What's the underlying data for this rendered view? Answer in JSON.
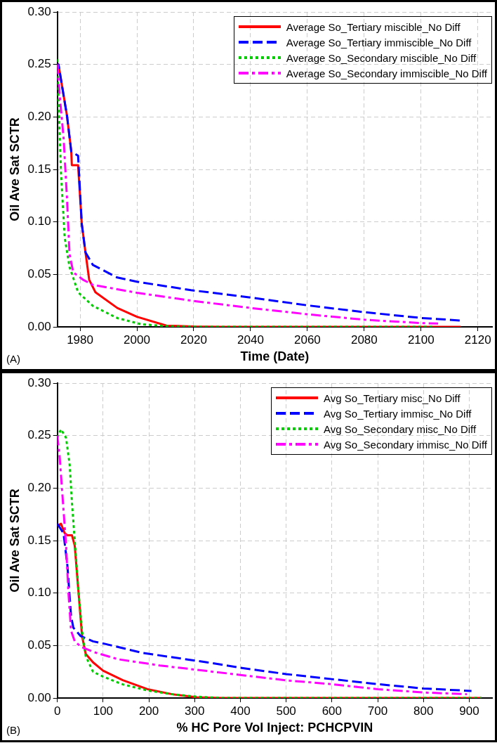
{
  "chart_data": [
    {
      "type": "line",
      "xlabel": "Time (Date)",
      "ylabel": "Oil Ave Sat SCTR",
      "annotations": [
        "(A)"
      ],
      "xlim": [
        1972,
        2125
      ],
      "ylim": [
        0,
        0.3
      ],
      "xticks": [
        1980,
        2000,
        2020,
        2040,
        2060,
        2080,
        2100,
        2120
      ],
      "yticks": [
        {
          "value": 0,
          "label": "0.00"
        },
        {
          "value": 0.05,
          "label": "0.05"
        },
        {
          "value": 0.1,
          "label": "0.10"
        },
        {
          "value": 0.15,
          "label": "0.15"
        },
        {
          "value": 0.2,
          "label": "0.20"
        },
        {
          "value": 0.25,
          "label": "0.25"
        },
        {
          "value": 0.3,
          "label": "0.30"
        }
      ],
      "grid": true,
      "legend": "top right",
      "marker": "none",
      "series": [
        {
          "name": "Average So_Tertiary miscible_No Diff",
          "color": "#ff0000",
          "line_style": "solid",
          "x": [
            1972,
            1972.4,
            1975.4,
            1976.9,
            1977.1,
            1979.3,
            1980.6,
            1981.9,
            1983.2,
            1985.4,
            1993.1,
            2000,
            2010.4,
            2020,
            2030,
            2114
          ],
          "values": [
            0.245,
            0.25,
            0.201,
            0.167,
            0.154,
            0.154,
            0.098,
            0.071,
            0.045,
            0.033,
            0.018,
            0.0096,
            0.0012,
            0.0003,
            0,
            0
          ]
        },
        {
          "name": "Average So_Tertiary immiscible_No Diff",
          "color": "#0000ff",
          "line_style": "dashed",
          "x": [
            1972,
            1972.4,
            1975.4,
            1976.9,
            1979.3,
            1980.6,
            1981.9,
            1984.5,
            1993.1,
            2000,
            2019,
            2040,
            2060,
            2080,
            2100,
            2114
          ],
          "values": [
            0.245,
            0.25,
            0.201,
            0.167,
            0.163,
            0.098,
            0.071,
            0.059,
            0.047,
            0.043,
            0.035,
            0.028,
            0.0205,
            0.014,
            0.0085,
            0.006
          ]
        },
        {
          "name": "Average So_Secondary miscible_No Diff",
          "color": "#00cc00",
          "line_style": "dotted",
          "x": [
            1972,
            1972.4,
            1973.3,
            1974.6,
            1976.3,
            1979.3,
            1984.5,
            1993.1,
            2001.7,
            2012,
            2022,
            2104
          ],
          "values": [
            0.255,
            0.218,
            0.146,
            0.085,
            0.057,
            0.033,
            0.02,
            0.0084,
            0.0024,
            0.0005,
            0,
            0
          ]
        },
        {
          "name": "Average So_Secondary immiscible_No Diff",
          "color": "#ff00ff",
          "line_style": "dashdot",
          "x": [
            1972,
            1972.9,
            1974.2,
            1975.4,
            1976.3,
            1977.6,
            1981,
            1984.5,
            2000,
            2019,
            2040,
            2060,
            2080,
            2100,
            2106
          ],
          "values": [
            0.25,
            0.218,
            0.18,
            0.122,
            0.069,
            0.052,
            0.045,
            0.04,
            0.0325,
            0.025,
            0.018,
            0.012,
            0.0068,
            0.0036,
            0.0031
          ]
        }
      ]
    },
    {
      "type": "line",
      "xlabel": "% HC Pore Vol Inject: PCHCPVIN",
      "ylabel": "Oil Ave Sat SCTR",
      "annotations": [
        "(B)"
      ],
      "xlim": [
        0,
        950
      ],
      "ylim": [
        0,
        0.3
      ],
      "xticks": [
        0,
        100,
        200,
        300,
        400,
        500,
        600,
        700,
        800,
        900
      ],
      "yticks": [
        {
          "value": 0,
          "label": "0.00"
        },
        {
          "value": 0.05,
          "label": "0.05"
        },
        {
          "value": 0.1,
          "label": "0.10"
        },
        {
          "value": 0.15,
          "label": "0.15"
        },
        {
          "value": 0.2,
          "label": "0.20"
        },
        {
          "value": 0.25,
          "label": "0.25"
        },
        {
          "value": 0.3,
          "label": "0.30"
        }
      ],
      "grid": true,
      "legend": "top right",
      "marker": "none",
      "series": [
        {
          "name": "Avg So_Tertiary misc_No Diff",
          "color": "#ff0000",
          "line_style": "solid",
          "x": [
            0,
            8,
            16,
            22,
            32,
            38,
            46,
            54,
            62,
            78,
            100,
            143,
            197,
            251,
            305,
            360,
            927
          ],
          "values": [
            0.164,
            0.166,
            0.157,
            0.155,
            0.155,
            0.145,
            0.102,
            0.059,
            0.042,
            0.034,
            0.026,
            0.017,
            0.0084,
            0.0036,
            0.0007,
            0,
            0
          ]
        },
        {
          "name": "Avg So_Tertiary immisc_No Diff",
          "color": "#0000ff",
          "line_style": "dashed",
          "x": [
            0,
            13.5,
            22,
            30,
            35,
            51,
            78,
            100,
            186,
            327,
            400,
            500,
            600,
            700,
            800,
            905
          ],
          "values": [
            0.166,
            0.157,
            0.126,
            0.078,
            0.067,
            0.059,
            0.054,
            0.052,
            0.043,
            0.034,
            0.0288,
            0.0228,
            0.018,
            0.0132,
            0.0091,
            0.0067
          ]
        },
        {
          "name": "Avg So_Secondary misc_No Diff",
          "color": "#00cc00",
          "line_style": "dotted",
          "x": [
            0,
            8,
            19,
            27,
            32,
            38,
            46,
            54,
            62,
            78,
            100,
            143,
            197,
            251,
            305,
            360,
            927
          ],
          "values": [
            0.248,
            0.256,
            0.248,
            0.222,
            0.186,
            0.15,
            0.102,
            0.064,
            0.04,
            0.025,
            0.0204,
            0.013,
            0.0072,
            0.0036,
            0.0012,
            0,
            0
          ]
        },
        {
          "name": "Avg So_Secondary immisc_No Diff",
          "color": "#ff00ff",
          "line_style": "dashdot",
          "x": [
            0,
            5,
            11,
            19,
            24,
            30,
            38,
            51,
            78,
            132,
            224,
            400,
            500,
            600,
            700,
            800,
            895
          ],
          "values": [
            0.25,
            0.23,
            0.194,
            0.146,
            0.102,
            0.064,
            0.054,
            0.049,
            0.044,
            0.037,
            0.031,
            0.022,
            0.0168,
            0.0132,
            0.0084,
            0.0053,
            0.0036
          ]
        }
      ]
    }
  ]
}
